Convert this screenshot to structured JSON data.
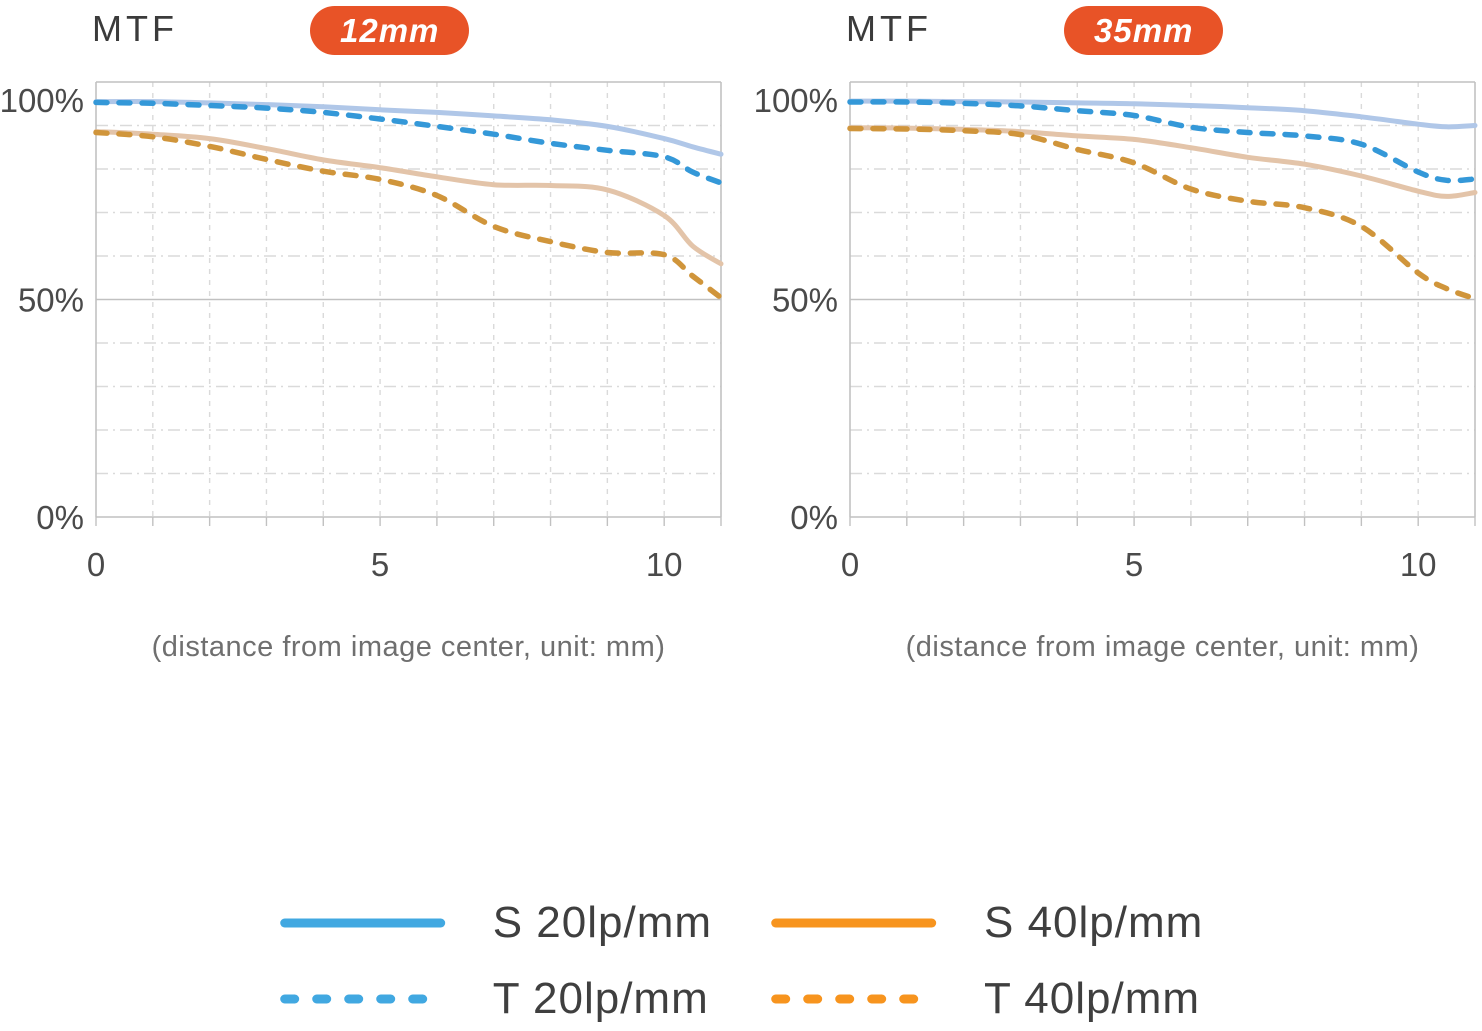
{
  "colors": {
    "background": "#FFFFFF",
    "badge_bg": "#E85327",
    "badge_text": "#FFFFFF",
    "title_text": "#3B3B3B",
    "axis_text": "#4A4A4A",
    "caption_text": "#6F6F6F",
    "legend_text": "#3F3F3F",
    "grid_major": "#C1C1C1",
    "grid_minor": "#DADADA",
    "legend_blue": "#41A8E1",
    "legend_orange": "#F7941E"
  },
  "chart_data": [
    {
      "type": "line",
      "title": "MTF",
      "badge": "12mm",
      "caption": "(distance from image center, unit: mm)",
      "xlim": [
        0,
        11
      ],
      "ylim": [
        0,
        100
      ],
      "grid": {
        "x_minor_step": 1,
        "y_minor_step": 10,
        "x_axis_ticks": true
      },
      "xticks": [
        {
          "label": "0",
          "value": 0
        },
        {
          "label": "5",
          "value": 5
        },
        {
          "label": "10",
          "value": 10
        }
      ],
      "yticks": [
        {
          "label": "0%",
          "value": 0
        },
        {
          "label": "50%",
          "value": 50
        },
        {
          "label": "100%",
          "value": 100
        }
      ],
      "x": [
        0,
        1,
        2,
        3,
        4,
        5,
        6,
        7,
        8,
        9,
        10,
        10.5,
        11
      ],
      "series": [
        {
          "name": "S 20lp/mm",
          "style": "solid",
          "color": "#B0C7E8",
          "values": [
            95.5,
            95.5,
            95.2,
            94.8,
            94.3,
            93.6,
            93.0,
            92.2,
            91.3,
            89.8,
            87.0,
            85.1,
            83.4
          ]
        },
        {
          "name": "T 20lp/mm",
          "style": "dashed",
          "color": "#3498D8",
          "values": [
            95.3,
            95.1,
            94.6,
            94.0,
            93.0,
            91.5,
            89.8,
            88.0,
            85.9,
            84.3,
            82.8,
            79.3,
            76.8
          ]
        },
        {
          "name": "S 40lp/mm",
          "style": "solid",
          "color": "#E3C4A9",
          "values": [
            88.6,
            88.0,
            87.0,
            84.7,
            82.1,
            80.3,
            78.2,
            76.4,
            76.2,
            75.2,
            69.3,
            62.3,
            58.2
          ]
        },
        {
          "name": "T 40lp/mm",
          "style": "dashed",
          "color": "#D0953B",
          "values": [
            88.4,
            87.4,
            85.2,
            82.2,
            79.5,
            77.6,
            73.9,
            66.8,
            63.3,
            60.8,
            60.3,
            55.4,
            50.4
          ]
        }
      ]
    },
    {
      "type": "line",
      "title": "MTF",
      "badge": "35mm",
      "caption": "(distance from image center, unit: mm)",
      "xlim": [
        0,
        11
      ],
      "ylim": [
        0,
        100
      ],
      "grid": {
        "x_minor_step": 1,
        "y_minor_step": 10,
        "x_axis_ticks": true
      },
      "xticks": [
        {
          "label": "0",
          "value": 0
        },
        {
          "label": "5",
          "value": 5
        },
        {
          "label": "10",
          "value": 10
        }
      ],
      "yticks": [
        {
          "label": "0%",
          "value": 0
        },
        {
          "label": "50%",
          "value": 50
        },
        {
          "label": "100%",
          "value": 100
        }
      ],
      "x": [
        0,
        1,
        2,
        3,
        4,
        5,
        6,
        7,
        8,
        9,
        10,
        10.5,
        11
      ],
      "series": [
        {
          "name": "S 20lp/mm",
          "style": "solid",
          "color": "#B0C7E8",
          "values": [
            95.6,
            95.6,
            95.5,
            95.4,
            95.2,
            95.0,
            94.6,
            94.1,
            93.4,
            92.0,
            90.3,
            89.7,
            90.0
          ]
        },
        {
          "name": "T 20lp/mm",
          "style": "dashed",
          "color": "#3498D8",
          "values": [
            95.4,
            95.4,
            95.1,
            94.5,
            93.4,
            92.3,
            89.6,
            88.4,
            87.6,
            85.7,
            79.3,
            77.4,
            77.7
          ]
        },
        {
          "name": "S 40lp/mm",
          "style": "solid",
          "color": "#E3C4A9",
          "values": [
            89.5,
            89.4,
            89.1,
            88.6,
            87.6,
            86.8,
            84.9,
            82.7,
            81.1,
            78.4,
            74.9,
            73.7,
            74.6
          ]
        },
        {
          "name": "T 40lp/mm",
          "style": "dashed",
          "color": "#D0953B",
          "values": [
            89.3,
            89.2,
            88.8,
            87.9,
            84.5,
            81.4,
            75.4,
            72.6,
            71.1,
            66.8,
            56.1,
            52.5,
            50.2
          ]
        }
      ]
    }
  ],
  "legend": {
    "items": [
      {
        "label": "S 20lp/mm",
        "style": "solid",
        "color": "#41A8E1"
      },
      {
        "label": "T 20lp/mm",
        "style": "dashed",
        "color": "#41A8E1"
      },
      {
        "label": "S 40lp/mm",
        "style": "solid",
        "color": "#F7941E"
      },
      {
        "label": "T 40lp/mm",
        "style": "dashed",
        "color": "#F7941E"
      }
    ]
  }
}
